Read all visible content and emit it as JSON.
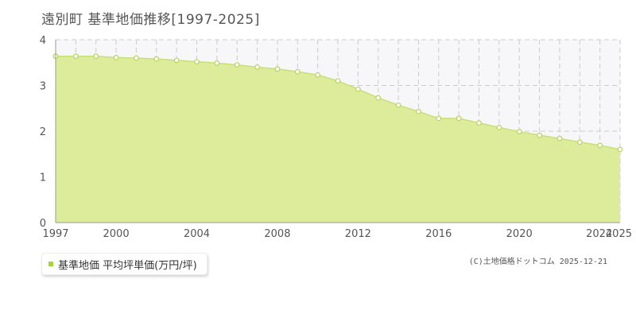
{
  "title": "遠別町 基準地価推移[1997-2025]",
  "legend": {
    "label": "基準地価 平均坪単価(万円/坪)"
  },
  "credit": "(C)土地価格ドットコム 2025-12-21",
  "colors": {
    "area_fill": "#dcec9a",
    "line": "#c8e078",
    "marker_fill": "#ffffff",
    "marker_stroke": "#b8d45c",
    "grid": "#cccccc",
    "axis": "#999999",
    "text": "#555555",
    "plot_bg": "#f7f7f9"
  },
  "chart_data": {
    "type": "area",
    "title": "遠別町 基準地価推移[1997-2025]",
    "xlabel": "",
    "ylabel": "",
    "ylim": [
      0,
      4
    ],
    "xlim": [
      1997,
      2025
    ],
    "yticks": [
      0,
      1,
      2,
      3,
      4
    ],
    "xtick_labels": [
      "1997",
      "2000",
      "2004",
      "2008",
      "2012",
      "2016",
      "2020",
      "2024",
      "2025"
    ],
    "grid": true,
    "legend_position": "bottom-left",
    "series": [
      {
        "name": "基準地価 平均坪単価(万円/坪)",
        "x": [
          1997,
          1998,
          1999,
          2000,
          2001,
          2002,
          2003,
          2004,
          2005,
          2006,
          2007,
          2008,
          2009,
          2010,
          2011,
          2012,
          2013,
          2014,
          2015,
          2016,
          2017,
          2018,
          2019,
          2020,
          2021,
          2022,
          2023,
          2024,
          2025
        ],
        "y": [
          3.64,
          3.64,
          3.64,
          3.61,
          3.6,
          3.58,
          3.55,
          3.52,
          3.49,
          3.45,
          3.4,
          3.36,
          3.3,
          3.23,
          3.1,
          2.92,
          2.73,
          2.57,
          2.43,
          2.28,
          2.28,
          2.18,
          2.08,
          1.99,
          1.91,
          1.84,
          1.76,
          1.69,
          1.6
        ]
      }
    ]
  }
}
